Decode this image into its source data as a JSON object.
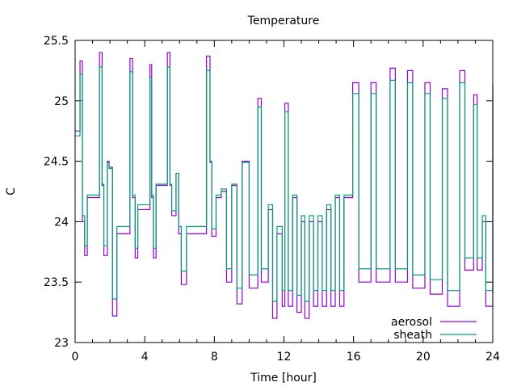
{
  "chart_data": {
    "type": "line",
    "title": "Temperature",
    "xlabel": "Time [hour]",
    "ylabel": "C",
    "xlim": [
      0,
      24
    ],
    "ylim": [
      23,
      25.5
    ],
    "xticks": [
      "0",
      "4",
      "8",
      "12",
      "16",
      "20",
      "24"
    ],
    "yticks": [
      "23",
      "23.5",
      "24",
      "24.5",
      "25",
      "25.5"
    ],
    "legend_position": "bottom-right",
    "grid": false,
    "x": [
      0,
      0.28,
      0.42,
      0.55,
      0.7,
      1.4,
      1.55,
      1.65,
      1.85,
      1.95,
      2.15,
      2.4,
      3.15,
      3.3,
      3.45,
      3.6,
      4.3,
      4.4,
      4.5,
      4.65,
      5.3,
      5.45,
      5.55,
      5.8,
      5.95,
      6.1,
      6.4,
      7.55,
      7.75,
      7.85,
      8.1,
      8.4,
      8.7,
      9.0,
      9.3,
      9.6,
      10.0,
      10.5,
      10.7,
      11.1,
      11.35,
      11.6,
      11.9,
      12.05,
      12.25,
      12.5,
      12.75,
      13.0,
      13.2,
      13.45,
      13.7,
      13.95,
      14.2,
      14.45,
      14.7,
      14.95,
      15.2,
      15.45,
      15.95,
      16.3,
      17.0,
      17.3,
      18.1,
      18.4,
      19.1,
      19.4,
      20.1,
      20.4,
      21.1,
      21.4,
      22.1,
      22.4,
      22.9,
      23.1,
      23.4,
      23.6,
      24.0
    ],
    "series": [
      {
        "name": "aerosol",
        "color": "#9400d3",
        "values": [
          24.75,
          25.33,
          24.0,
          23.72,
          24.2,
          25.4,
          24.3,
          23.72,
          24.5,
          24.45,
          23.22,
          23.9,
          25.35,
          24.2,
          23.7,
          24.1,
          25.3,
          24.2,
          23.7,
          24.3,
          25.4,
          24.3,
          24.05,
          24.4,
          23.9,
          23.48,
          23.9,
          25.37,
          24.5,
          23.88,
          24.2,
          24.25,
          23.5,
          24.3,
          23.32,
          24.5,
          23.45,
          25.02,
          23.5,
          24.1,
          23.2,
          23.9,
          23.3,
          24.98,
          23.3,
          24.2,
          23.25,
          24.0,
          23.2,
          24.0,
          23.3,
          24.0,
          23.3,
          24.1,
          23.3,
          24.2,
          23.3,
          24.2,
          25.15,
          23.5,
          25.15,
          23.5,
          25.27,
          23.5,
          25.25,
          23.45,
          25.15,
          23.4,
          25.1,
          23.3,
          25.25,
          23.6,
          25.05,
          23.6,
          24.0,
          23.3,
          25.15
        ]
      },
      {
        "name": "sheath",
        "color": "#009e73",
        "values": [
          24.71,
          25.22,
          24.05,
          23.8,
          24.22,
          25.28,
          24.31,
          23.8,
          24.49,
          24.44,
          23.36,
          23.96,
          25.24,
          24.22,
          23.78,
          24.14,
          25.19,
          24.22,
          23.78,
          24.31,
          25.28,
          24.31,
          24.09,
          24.4,
          23.96,
          23.59,
          23.96,
          25.25,
          24.49,
          23.94,
          24.22,
          24.27,
          23.61,
          24.31,
          23.45,
          24.49,
          23.56,
          24.95,
          23.61,
          24.14,
          23.34,
          23.96,
          23.43,
          24.91,
          23.43,
          24.22,
          23.39,
          24.05,
          23.34,
          24.05,
          23.43,
          24.05,
          23.43,
          24.14,
          23.43,
          24.22,
          23.43,
          24.22,
          25.06,
          23.61,
          25.06,
          23.61,
          25.17,
          23.61,
          25.15,
          23.56,
          25.06,
          23.52,
          25.02,
          23.43,
          25.15,
          23.7,
          24.97,
          23.7,
          24.05,
          23.43,
          25.06
        ]
      }
    ]
  }
}
